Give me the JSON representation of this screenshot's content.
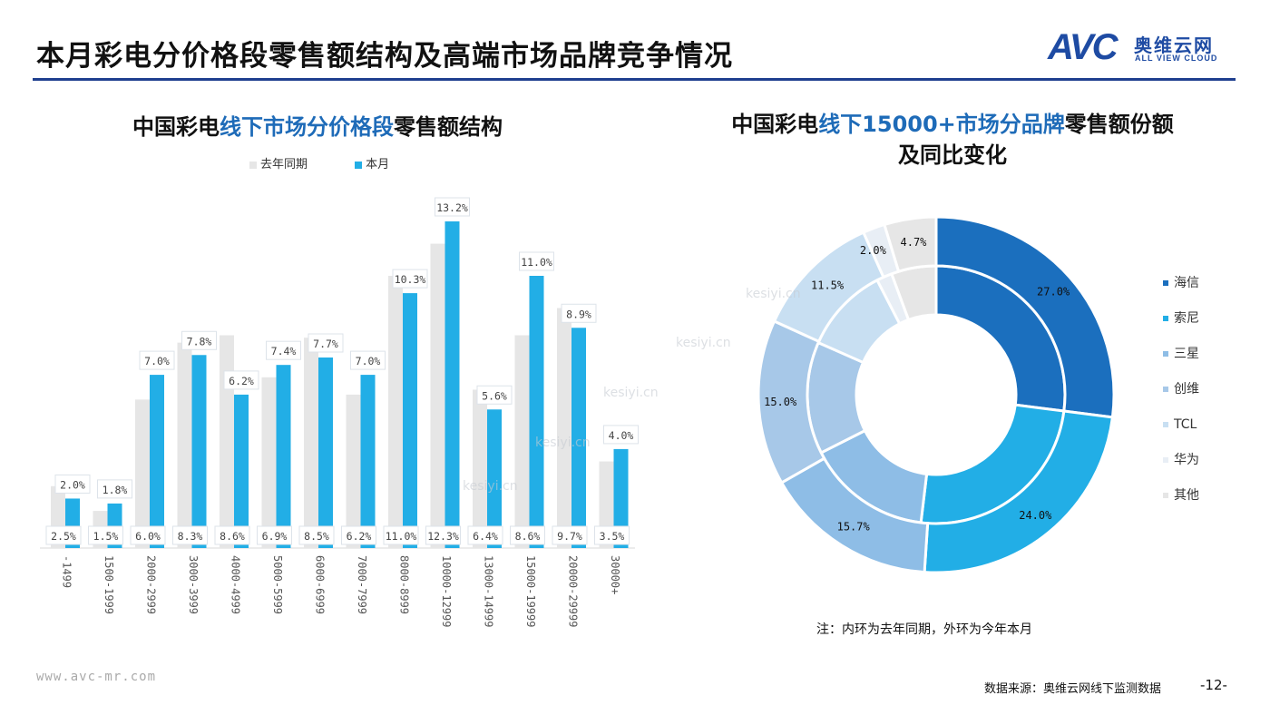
{
  "header": {
    "title": "本月彩电分价格段零售额结构及高端市场品牌竞争情况",
    "logo_mark": "AVC",
    "logo_cn": "奥维云网",
    "logo_en": "ALL VIEW CLOUD"
  },
  "left_chart": {
    "title_a": "中国彩电",
    "title_b": "线下市场分价格段",
    "title_c": "零售额结构"
  },
  "right_chart": {
    "title_a": "中国彩电",
    "title_b": "线下15000+市场分品牌",
    "title_c": "零售额份额",
    "title_line2": "及同比变化"
  },
  "chart_data": [
    {
      "type": "bar",
      "categories": [
        "-1499",
        "1500-1999",
        "2000-2999",
        "3000-3999",
        "4000-4999",
        "5000-5999",
        "6000-6999",
        "7000-7999",
        "8000-8999",
        "10000-12999",
        "13000-14999",
        "15000-19999",
        "20000-29999",
        "30000+"
      ],
      "series": [
        {
          "name": "去年同期",
          "values": [
            2.5,
            1.5,
            6.0,
            8.3,
            8.6,
            6.9,
            8.5,
            6.2,
            11.0,
            12.3,
            6.4,
            8.6,
            9.7,
            3.5
          ],
          "labels": [
            "2.5%",
            "1.5%",
            "6.0%",
            "8.3%",
            "8.6%",
            "6.9%",
            "8.5%",
            "6.2%",
            "11.0%",
            "12.3%",
            "6.4%",
            "8.6%",
            "9.7%",
            "3.5%"
          ],
          "color": "#e6e6e6"
        },
        {
          "name": "本月",
          "values": [
            2.0,
            1.8,
            7.0,
            7.8,
            6.2,
            7.4,
            7.7,
            7.0,
            10.3,
            13.2,
            5.6,
            11.0,
            8.9,
            4.0
          ],
          "labels": [
            "2.0%",
            "1.8%",
            "7.0%",
            "7.8%",
            "6.2%",
            "7.4%",
            "7.7%",
            "7.0%",
            "10.3%",
            "13.2%",
            "5.6%",
            "11.0%",
            "8.9%",
            "4.0%"
          ],
          "color": "#22aee6"
        }
      ],
      "ylim": [
        0,
        13.2
      ],
      "legend_position": "top",
      "grid": false
    },
    {
      "type": "pie",
      "variant": "nested-donut",
      "categories": [
        "海信",
        "索尼",
        "三星",
        "创维",
        "TCL",
        "华为",
        "其他"
      ],
      "colors": [
        "#1b6fbe",
        "#22aee6",
        "#8ebde6",
        "#a7c8e8",
        "#c8dff2",
        "#e8eef5",
        "#e6e6e6"
      ],
      "series": [
        {
          "name": "outer",
          "values": [
            27.0,
            24.0,
            15.7,
            15.0,
            11.5,
            2.0,
            4.7
          ],
          "labels": [
            "27.0%",
            "24.0%",
            "15.7%",
            "15.0%",
            "11.5%",
            "2.0%",
            "4.7%"
          ]
        },
        {
          "name": "inner",
          "values": [
            25.0,
            23.0,
            14.5,
            13.0,
            10.0,
            1.8,
            5.2
          ]
        }
      ],
      "legend_position": "right"
    }
  ],
  "note": "注：内环为去年同期，外环为今年本月",
  "footer": {
    "url": "www.avc-mr.com",
    "source": "数据来源：奥维云网线下监测数据",
    "page": "-12-"
  },
  "watermark": "kesiyi.cn"
}
